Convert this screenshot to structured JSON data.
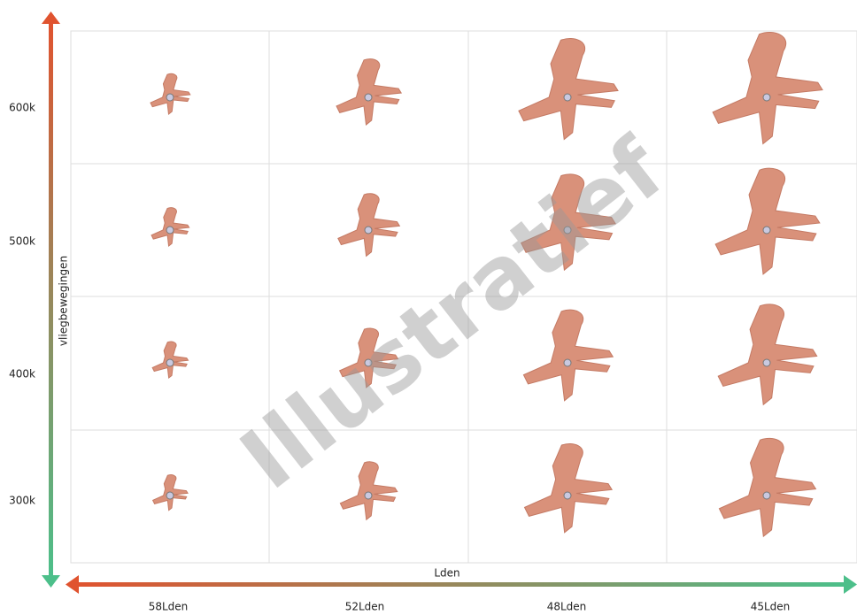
{
  "y_axis": {
    "title": "vliegbewegingen",
    "labels": [
      "600k",
      "500k",
      "400k",
      "300k"
    ]
  },
  "x_axis": {
    "title": "Lden",
    "labels": [
      "58Lden",
      "52Lden",
      "48Lden",
      "45Lden"
    ]
  },
  "watermark": "Illustratief"
}
